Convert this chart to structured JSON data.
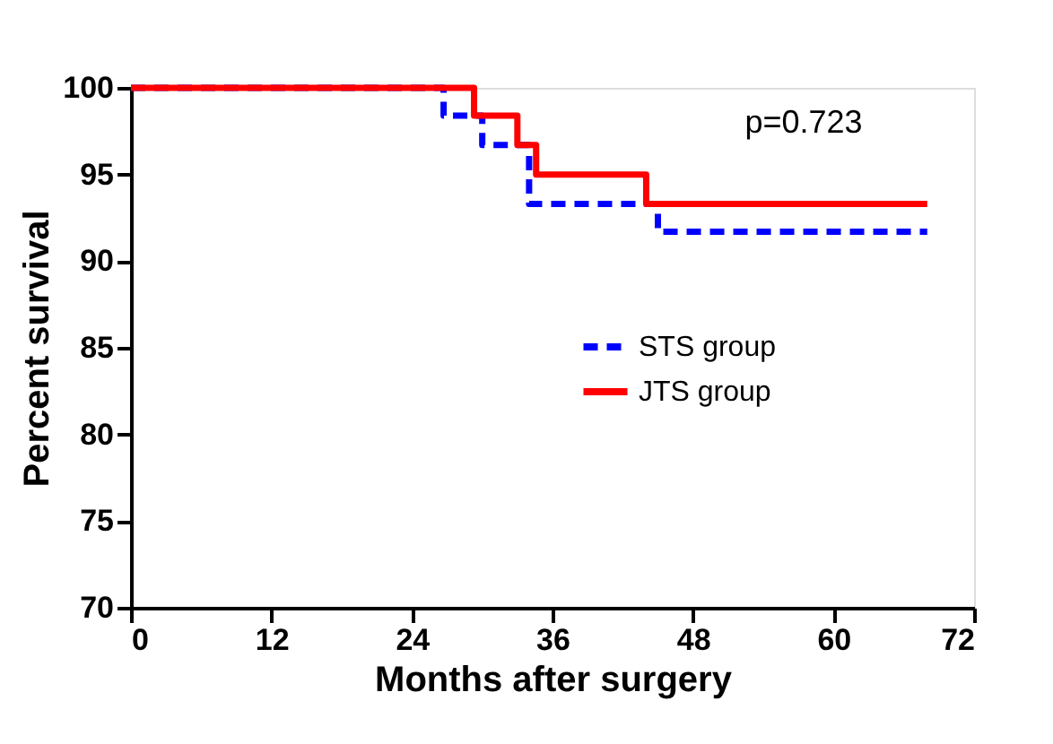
{
  "chart_data": {
    "type": "step",
    "xlabel": "Months after surgery",
    "ylabel": "Percent survival",
    "xlim": [
      0,
      72
    ],
    "xticks": [
      0,
      12,
      24,
      36,
      48,
      60,
      72
    ],
    "ylim": [
      70,
      100
    ],
    "yticks": [
      70,
      75,
      80,
      85,
      90,
      95,
      100
    ],
    "grid": false,
    "legend": "right",
    "marker": "none",
    "annotations": [
      "p=0.723"
    ],
    "series": [
      {
        "name": "STS group",
        "color": "#0000ff",
        "line_style": "dashed",
        "x": [
          0,
          26.7,
          30,
          34,
          45,
          68
        ],
        "values": [
          100,
          98.4,
          96.7,
          93.3,
          91.7,
          91.7
        ]
      },
      {
        "name": "JTS group",
        "color": "#ff0000",
        "line_style": "solid",
        "x": [
          0,
          29.3,
          33,
          34.6,
          44,
          68
        ],
        "values": [
          100,
          98.4,
          96.7,
          95.0,
          93.3,
          93.3
        ]
      }
    ]
  }
}
